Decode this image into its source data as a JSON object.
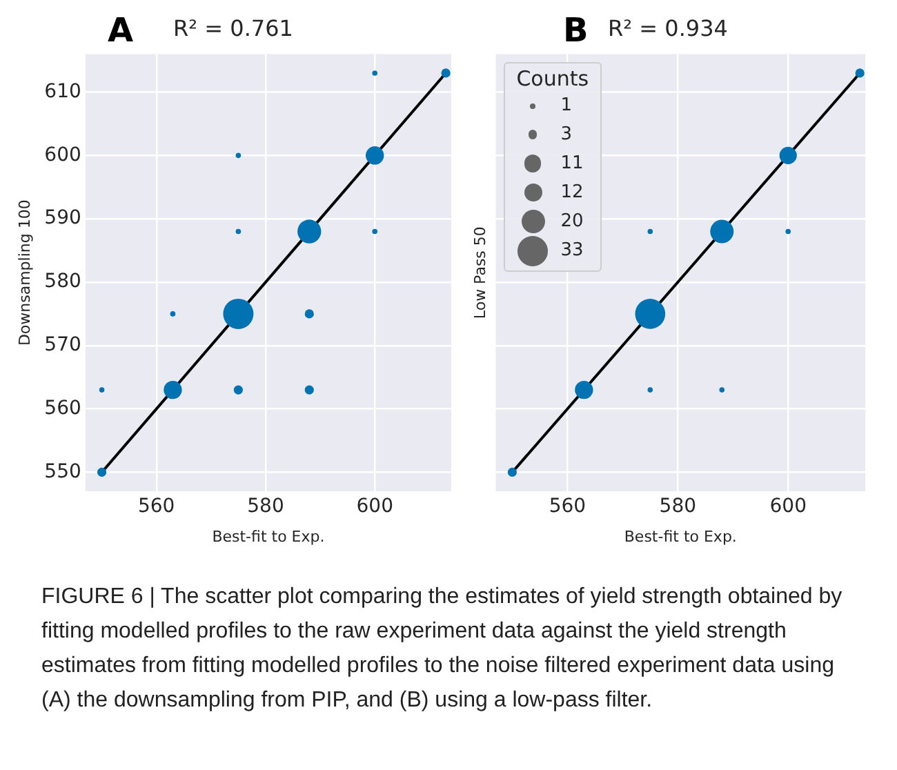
{
  "chart_data": [
    {
      "type": "bubble",
      "title": "R² = 0.761",
      "annotations": [
        "A"
      ],
      "xlabel": "Best-fit to Exp.",
      "ylabel": "Downsampling 100",
      "xlim": [
        547,
        614
      ],
      "xticks": [
        560,
        580,
        600
      ],
      "ylim": [
        547,
        616
      ],
      "yticks": [
        550,
        560,
        570,
        580,
        590,
        600,
        610
      ],
      "grid": true,
      "series": [
        {
          "color": "#0173b2",
          "x": [
            550,
            550,
            563,
            563,
            575,
            575,
            575,
            575,
            588,
            588,
            588,
            600,
            600,
            600,
            613
          ],
          "values": [
            550,
            563,
            563,
            575,
            575,
            563,
            588,
            600,
            588,
            575,
            563,
            600,
            613,
            588,
            613
          ],
          "sizes": [
            0.09,
            0.03,
            0.36,
            0.03,
            1,
            0.09,
            0.03,
            0.03,
            0.61,
            0.09,
            0.09,
            0.36,
            0.03,
            0.03,
            0.09
          ]
        },
        {
          "type": "line",
          "color": "#000000",
          "x": [
            550,
            613
          ],
          "values": [
            550,
            613
          ]
        }
      ]
    },
    {
      "type": "bubble",
      "title": "R² = 0.934",
      "annotations": [
        "B",
        "FIGURE 6 | The scatter plot comparing the estimates of yield strength obtained by fitting modelled profiles to the raw experiment data against the yield strength estimates from fitting modelled profiles to the noise filtered experiment data using (A) the downsampling from PIP, and (B) using a low-pass filter."
      ],
      "xlabel": "Best-fit to Exp.",
      "ylabel": "Low Pass 50",
      "xlim": [
        547,
        614
      ],
      "xticks": [
        560,
        580,
        600
      ],
      "ylim": [
        547,
        616
      ],
      "yticks": [
        550,
        560,
        570,
        580,
        590,
        600,
        610
      ],
      "tick_labels": "x",
      "grid": true,
      "legend_title": "Counts",
      "size_legend": [
        1,
        3,
        11,
        12,
        20,
        33
      ],
      "series": [
        {
          "color": "#0173b2",
          "x": [
            550,
            563,
            575,
            575,
            575,
            588,
            588,
            600,
            600,
            613
          ],
          "values": [
            550,
            563,
            575,
            588,
            563,
            588,
            563,
            600,
            588,
            613
          ],
          "sizes": [
            3,
            12,
            33,
            1,
            1,
            20,
            1,
            11,
            1,
            3
          ]
        },
        {
          "type": "line",
          "color": "#000000",
          "x": [
            550,
            613
          ],
          "values": [
            550,
            613
          ]
        }
      ]
    }
  ]
}
